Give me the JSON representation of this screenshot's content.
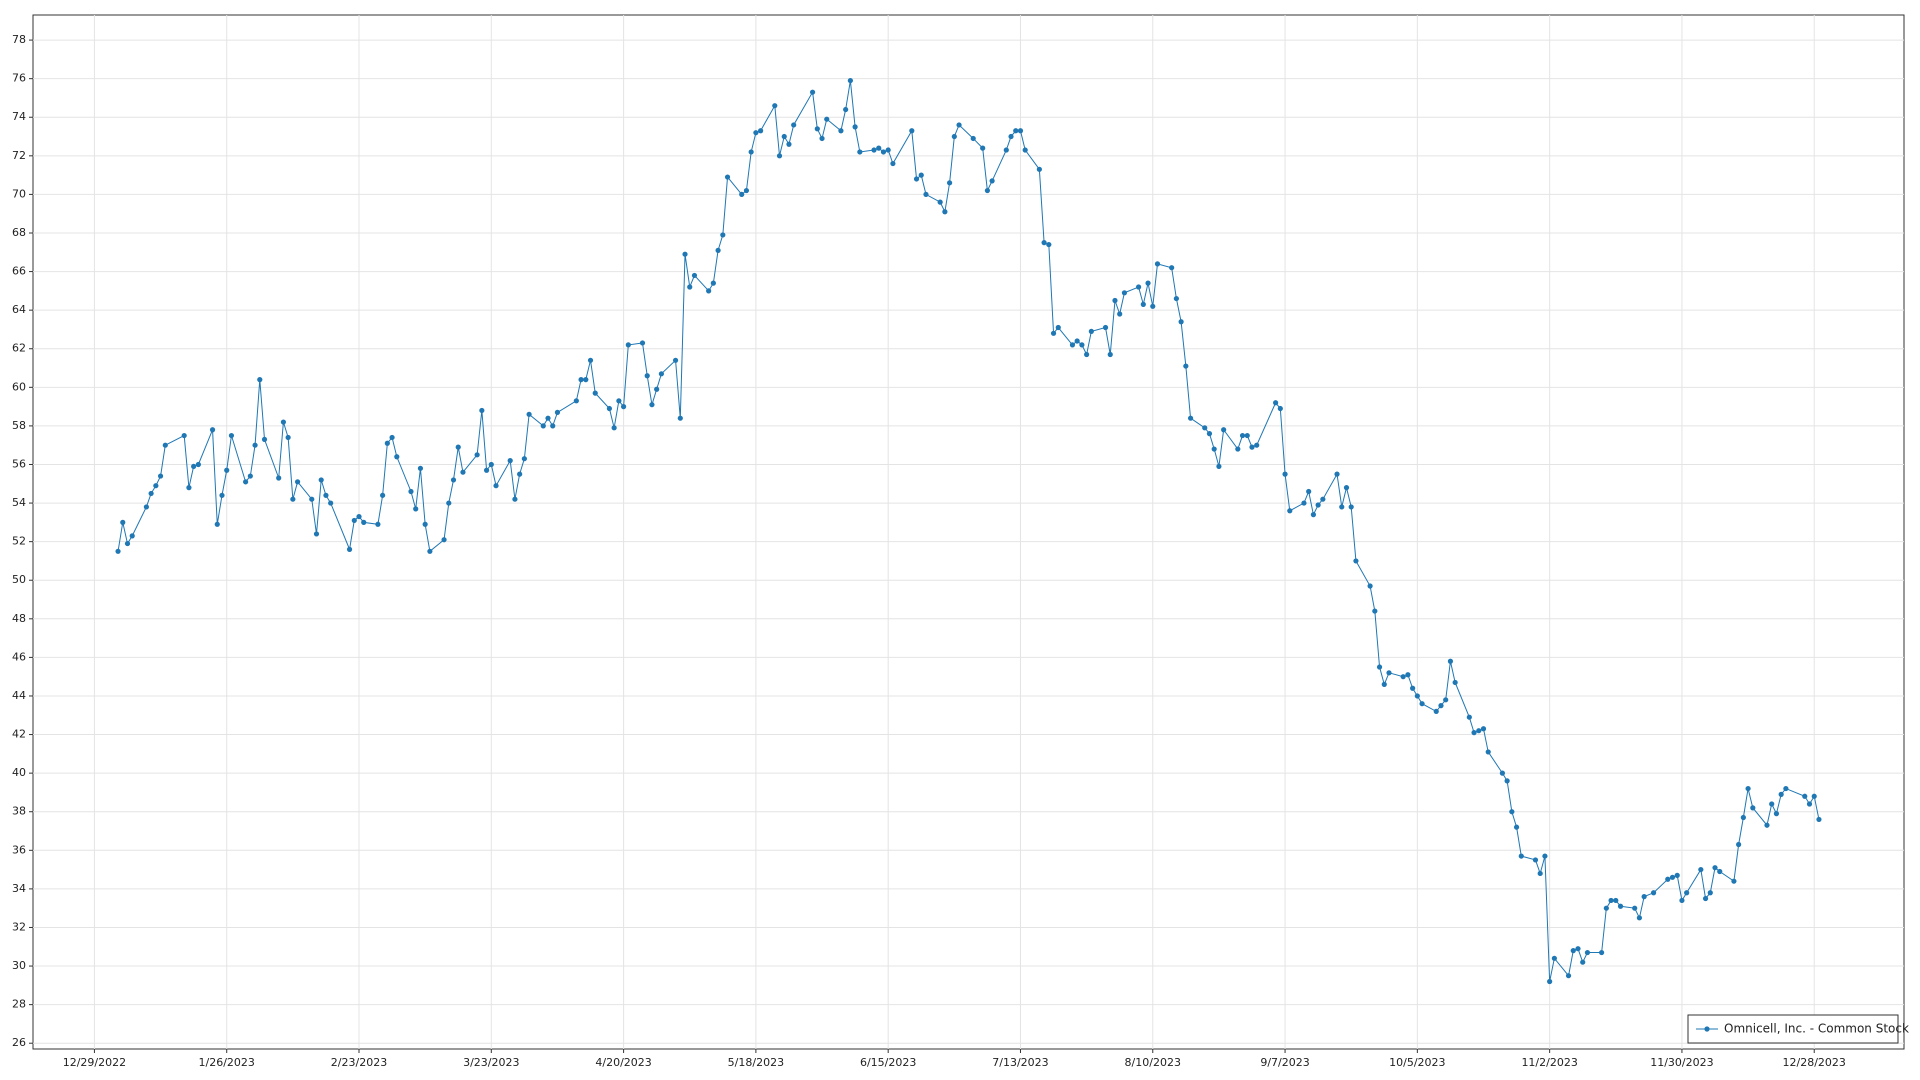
{
  "chart_data": {
    "type": "line",
    "grid": true,
    "legend": "lower right",
    "xlim": [
      "12/16/2022",
      "1/16/2024"
    ],
    "xticks": [
      "12/29/2022",
      "1/26/2023",
      "2/23/2023",
      "3/23/2023",
      "4/20/2023",
      "5/18/2023",
      "6/15/2023",
      "7/13/2023",
      "8/10/2023",
      "9/7/2023",
      "10/5/2023",
      "11/2/2023",
      "11/30/2023",
      "12/28/2023"
    ],
    "ylim": [
      25.7,
      79.3
    ],
    "yticks": [
      26,
      28,
      30,
      32,
      34,
      36,
      38,
      40,
      42,
      44,
      46,
      48,
      50,
      52,
      54,
      56,
      58,
      60,
      62,
      64,
      66,
      68,
      70,
      72,
      74,
      76,
      78
    ],
    "x": [
      "1/3/2023",
      "1/4/2023",
      "1/5/2023",
      "1/6/2023",
      "1/9/2023",
      "1/10/2023",
      "1/11/2023",
      "1/12/2023",
      "1/13/2023",
      "1/17/2023",
      "1/18/2023",
      "1/19/2023",
      "1/20/2023",
      "1/23/2023",
      "1/24/2023",
      "1/25/2023",
      "1/26/2023",
      "1/27/2023",
      "1/30/2023",
      "1/31/2023",
      "2/1/2023",
      "2/2/2023",
      "2/3/2023",
      "2/6/2023",
      "2/7/2023",
      "2/8/2023",
      "2/9/2023",
      "2/10/2023",
      "2/13/2023",
      "2/14/2023",
      "2/15/2023",
      "2/16/2023",
      "2/17/2023",
      "2/21/2023",
      "2/22/2023",
      "2/23/2023",
      "2/24/2023",
      "2/27/2023",
      "2/28/2023",
      "3/1/2023",
      "3/2/2023",
      "3/3/2023",
      "3/6/2023",
      "3/7/2023",
      "3/8/2023",
      "3/9/2023",
      "3/10/2023",
      "3/13/2023",
      "3/14/2023",
      "3/15/2023",
      "3/16/2023",
      "3/17/2023",
      "3/20/2023",
      "3/21/2023",
      "3/22/2023",
      "3/23/2023",
      "3/24/2023",
      "3/27/2023",
      "3/28/2023",
      "3/29/2023",
      "3/30/2023",
      "3/31/2023",
      "4/3/2023",
      "4/4/2023",
      "4/5/2023",
      "4/6/2023",
      "4/10/2023",
      "4/11/2023",
      "4/12/2023",
      "4/13/2023",
      "4/14/2023",
      "4/17/2023",
      "4/18/2023",
      "4/19/2023",
      "4/20/2023",
      "4/21/2023",
      "4/24/2023",
      "4/25/2023",
      "4/26/2023",
      "4/27/2023",
      "4/28/2023",
      "5/1/2023",
      "5/2/2023",
      "5/3/2023",
      "5/4/2023",
      "5/5/2023",
      "5/8/2023",
      "5/9/2023",
      "5/10/2023",
      "5/11/2023",
      "5/12/2023",
      "5/15/2023",
      "5/16/2023",
      "5/17/2023",
      "5/18/2023",
      "5/19/2023",
      "5/22/2023",
      "5/23/2023",
      "5/24/2023",
      "5/25/2023",
      "5/26/2023",
      "5/30/2023",
      "5/31/2023",
      "6/1/2023",
      "6/2/2023",
      "6/5/2023",
      "6/6/2023",
      "6/7/2023",
      "6/8/2023",
      "6/9/2023",
      "6/12/2023",
      "6/13/2023",
      "6/14/2023",
      "6/15/2023",
      "6/16/2023",
      "6/20/2023",
      "6/21/2023",
      "6/22/2023",
      "6/23/2023",
      "6/26/2023",
      "6/27/2023",
      "6/28/2023",
      "6/29/2023",
      "6/30/2023",
      "7/3/2023",
      "7/5/2023",
      "7/6/2023",
      "7/7/2023",
      "7/10/2023",
      "7/11/2023",
      "7/12/2023",
      "7/13/2023",
      "7/14/2023",
      "7/17/2023",
      "7/18/2023",
      "7/19/2023",
      "7/20/2023",
      "7/21/2023",
      "7/24/2023",
      "7/25/2023",
      "7/26/2023",
      "7/27/2023",
      "7/28/2023",
      "7/31/2023",
      "8/1/2023",
      "8/2/2023",
      "8/3/2023",
      "8/4/2023",
      "8/7/2023",
      "8/8/2023",
      "8/9/2023",
      "8/10/2023",
      "8/11/2023",
      "8/14/2023",
      "8/15/2023",
      "8/16/2023",
      "8/17/2023",
      "8/18/2023",
      "8/21/2023",
      "8/22/2023",
      "8/23/2023",
      "8/24/2023",
      "8/25/2023",
      "8/28/2023",
      "8/29/2023",
      "8/30/2023",
      "8/31/2023",
      "9/1/2023",
      "9/5/2023",
      "9/6/2023",
      "9/7/2023",
      "9/8/2023",
      "9/11/2023",
      "9/12/2023",
      "9/13/2023",
      "9/14/2023",
      "9/15/2023",
      "9/18/2023",
      "9/19/2023",
      "9/20/2023",
      "9/21/2023",
      "9/22/2023",
      "9/25/2023",
      "9/26/2023",
      "9/27/2023",
      "9/28/2023",
      "9/29/2023",
      "10/2/2023",
      "10/3/2023",
      "10/4/2023",
      "10/5/2023",
      "10/6/2023",
      "10/9/2023",
      "10/10/2023",
      "10/11/2023",
      "10/12/2023",
      "10/13/2023",
      "10/16/2023",
      "10/17/2023",
      "10/18/2023",
      "10/19/2023",
      "10/20/2023",
      "10/23/2023",
      "10/24/2023",
      "10/25/2023",
      "10/26/2023",
      "10/27/2023",
      "10/30/2023",
      "10/31/2023",
      "11/1/2023",
      "11/2/2023",
      "11/3/2023",
      "11/6/2023",
      "11/7/2023",
      "11/8/2023",
      "11/9/2023",
      "11/10/2023",
      "11/13/2023",
      "11/14/2023",
      "11/15/2023",
      "11/16/2023",
      "11/17/2023",
      "11/20/2023",
      "11/21/2023",
      "11/22/2023",
      "11/24/2023",
      "11/27/2023",
      "11/28/2023",
      "11/29/2023",
      "11/30/2023",
      "12/1/2023",
      "12/4/2023",
      "12/5/2023",
      "12/6/2023",
      "12/7/2023",
      "12/8/2023",
      "12/11/2023",
      "12/12/2023",
      "12/13/2023",
      "12/14/2023",
      "12/15/2023",
      "12/18/2023",
      "12/19/2023",
      "12/20/2023",
      "12/21/2023",
      "12/22/2023",
      "12/26/2023",
      "12/27/2023",
      "12/28/2023",
      "12/29/2023"
    ],
    "series": [
      {
        "name": "Omnicell, Inc. - Common Stock",
        "color": "#1f77b4",
        "values": [
          51.5,
          53.0,
          51.9,
          52.3,
          53.8,
          54.5,
          54.9,
          55.4,
          57.0,
          57.5,
          54.8,
          55.9,
          56.0,
          57.8,
          52.9,
          54.4,
          55.7,
          57.5,
          55.1,
          55.4,
          57.0,
          60.4,
          57.3,
          55.3,
          58.2,
          57.4,
          54.2,
          55.1,
          54.2,
          52.4,
          55.2,
          54.4,
          54.0,
          51.6,
          53.1,
          53.3,
          53.0,
          52.9,
          54.4,
          57.1,
          57.4,
          56.4,
          54.6,
          53.7,
          55.8,
          52.9,
          51.5,
          52.1,
          54.0,
          55.2,
          56.9,
          55.6,
          56.5,
          58.8,
          55.7,
          56.0,
          54.9,
          56.2,
          54.2,
          55.5,
          56.3,
          58.6,
          58.0,
          58.4,
          58.0,
          58.7,
          59.3,
          60.4,
          60.4,
          61.4,
          59.7,
          58.9,
          57.9,
          59.3,
          59.0,
          62.2,
          62.3,
          60.6,
          59.1,
          59.9,
          60.7,
          61.4,
          58.4,
          66.9,
          65.2,
          65.8,
          65.0,
          65.4,
          67.1,
          67.9,
          70.9,
          70.0,
          70.2,
          72.2,
          73.2,
          73.3,
          74.6,
          72.0,
          73.0,
          72.6,
          73.6,
          75.3,
          73.4,
          72.9,
          73.9,
          73.3,
          74.4,
          75.9,
          73.5,
          72.2,
          72.3,
          72.4,
          72.2,
          72.3,
          71.6,
          73.3,
          70.8,
          71.0,
          70.0,
          69.6,
          69.1,
          70.6,
          73.0,
          73.6,
          72.9,
          72.4,
          70.2,
          70.7,
          72.3,
          73.0,
          73.3,
          73.3,
          72.3,
          71.3,
          67.5,
          67.4,
          62.8,
          63.1,
          62.2,
          62.4,
          62.2,
          61.7,
          62.9,
          63.1,
          61.7,
          64.5,
          63.8,
          64.9,
          65.2,
          64.3,
          65.4,
          64.2,
          66.4,
          66.2,
          64.6,
          63.4,
          61.1,
          58.4,
          57.9,
          57.6,
          56.8,
          55.9,
          57.8,
          56.8,
          57.5,
          57.5,
          56.9,
          57.0,
          59.2,
          58.9,
          55.5,
          53.6,
          54.0,
          54.6,
          53.4,
          53.9,
          54.2,
          55.5,
          53.8,
          54.8,
          53.8,
          51.0,
          49.7,
          48.4,
          45.5,
          44.6,
          45.2,
          45.0,
          45.1,
          44.4,
          44.0,
          43.6,
          43.2,
          43.5,
          43.8,
          45.8,
          44.7,
          42.9,
          42.1,
          42.2,
          42.3,
          41.1,
          40.0,
          39.6,
          38.0,
          37.2,
          35.7,
          35.5,
          34.8,
          35.7,
          29.2,
          30.4,
          29.5,
          30.8,
          30.9,
          30.2,
          30.7,
          30.7,
          33.0,
          33.4,
          33.4,
          33.1,
          33.0,
          32.5,
          33.6,
          33.8,
          34.5,
          34.6,
          34.7,
          33.4,
          33.8,
          35.0,
          33.5,
          33.8,
          35.1,
          34.9,
          34.4,
          36.3,
          37.7,
          39.2,
          38.2,
          37.3,
          38.4,
          37.9,
          38.9,
          39.2,
          38.8,
          38.4,
          38.8,
          37.6
        ]
      }
    ]
  }
}
